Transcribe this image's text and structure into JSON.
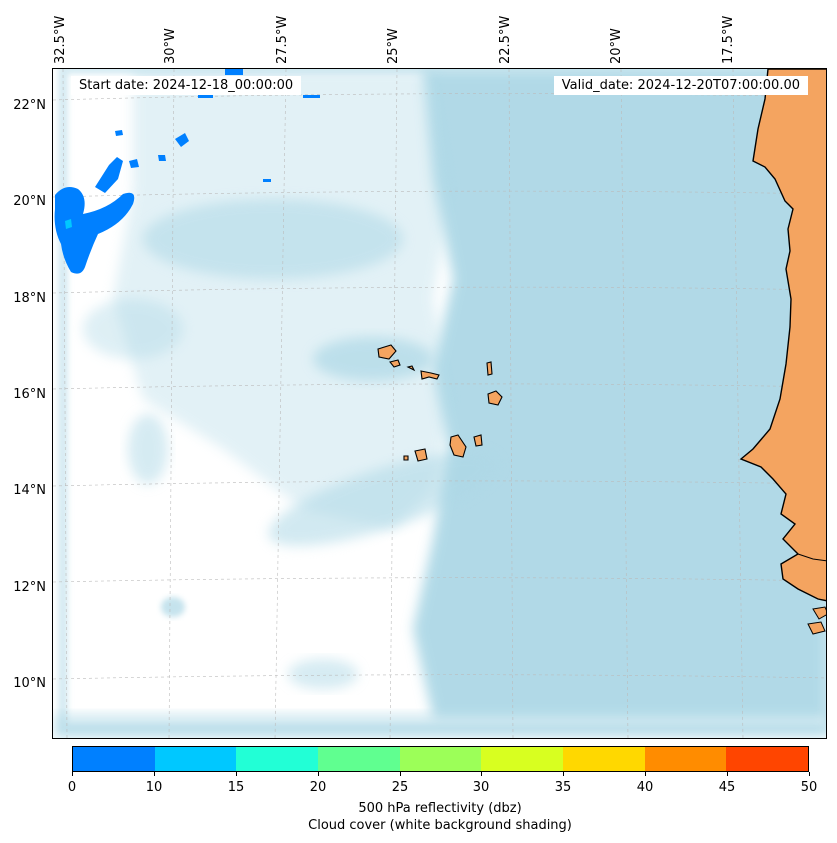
{
  "header": {
    "start_date": "Start date: 2024-12-18_00:00:00",
    "valid_date": "Valid_date: 2024-12-20T07:00:00.00"
  },
  "map": {
    "longitude_labels": [
      "32.5°W",
      "30°W",
      "27.5°W",
      "25°W",
      "22.5°W",
      "20°W",
      "17.5°W"
    ],
    "latitude_labels": [
      "22°N",
      "20°N",
      "18°N",
      "16°N",
      "14°N",
      "12°N",
      "10°N"
    ],
    "colors": {
      "cloud_cover": "#add8e6",
      "land": "#f4a460",
      "reflectivity_0_10": "#0080ff"
    }
  },
  "colorbar": {
    "tick_labels": [
      "0",
      "10",
      "15",
      "20",
      "25",
      "30",
      "35",
      "40",
      "45",
      "50"
    ],
    "colors": [
      "#0080ff",
      "#00c8ff",
      "#22ffd6",
      "#60ff90",
      "#9cff58",
      "#d8ff20",
      "#ffd800",
      "#ff8c00",
      "#ff4500"
    ],
    "label_line1": "500 hPa reflectivity (dbz)",
    "label_line2": "Cloud cover (white background shading)"
  }
}
